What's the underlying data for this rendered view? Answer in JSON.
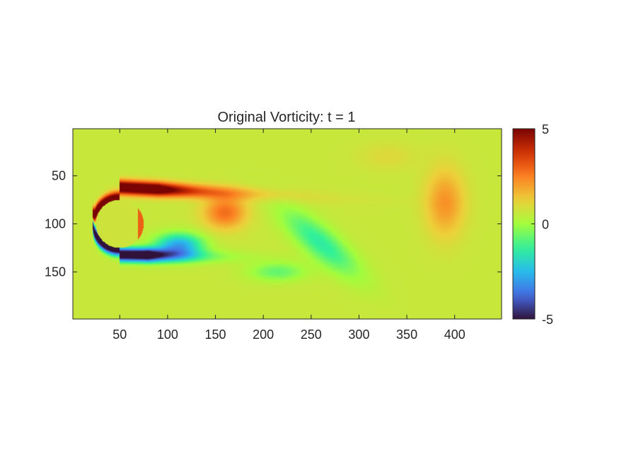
{
  "chart_data": {
    "type": "heatmap",
    "title": "Original Vorticity: t = 1",
    "xlabel": "",
    "ylabel": "",
    "x_range": [
      1,
      449
    ],
    "y_range": [
      1,
      199
    ],
    "y_direction": "reverse",
    "x_ticks": [
      50,
      100,
      150,
      200,
      250,
      300,
      350,
      400
    ],
    "y_ticks": [
      50,
      100,
      150
    ],
    "colorbar": {
      "colormap": "turbo",
      "limits": [
        -5,
        5
      ],
      "ticks": [
        5,
        0,
        -5
      ]
    },
    "cylinder": {
      "cx": 50,
      "cy": 100,
      "r": 26
    },
    "features": [
      {
        "kind": "shear-layer",
        "sign": "positive",
        "description_value": 5,
        "x_start": 24,
        "x_end": 165,
        "y_center": 62
      },
      {
        "kind": "shear-layer",
        "sign": "negative",
        "description_value": -5,
        "x_start": 24,
        "x_end": 130,
        "y_center": 133
      },
      {
        "kind": "vortex",
        "sign": "positive",
        "x": 160,
        "y": 85,
        "strength": 2.4
      },
      {
        "kind": "vortex",
        "sign": "negative",
        "x": 110,
        "y": 122,
        "strength": -3.0
      },
      {
        "kind": "vortex",
        "sign": "negative",
        "x": 265,
        "y": 128,
        "strength": -1.3
      },
      {
        "kind": "vortex",
        "sign": "positive",
        "x": 390,
        "y": 75,
        "strength": 1.6
      }
    ],
    "grid": false,
    "legend": "none"
  }
}
